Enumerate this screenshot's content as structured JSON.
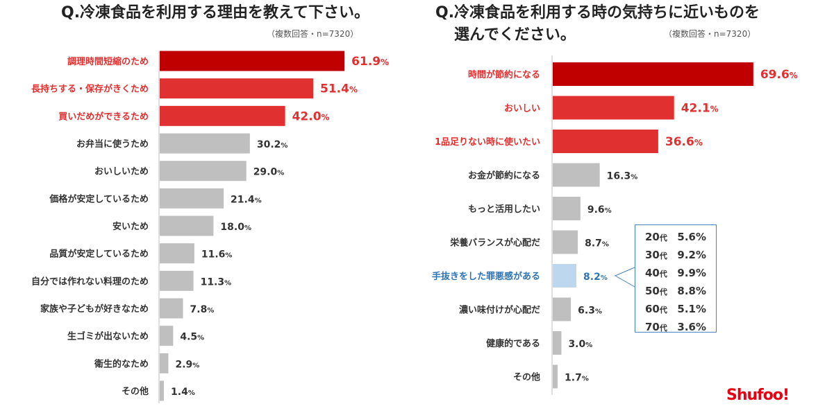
{
  "chart_data": [
    {
      "type": "bar",
      "orientation": "horizontal",
      "title": "Q.冷凍食品を利用する理由を教えて下さい。",
      "note": "（複数回答・n=7320）",
      "unit": "%",
      "xlim": [
        0,
        100
      ],
      "categories": [
        "調理時間短縮のため",
        "長持ちする・保存がきくため",
        "買いだめができるため",
        "お弁当に使うため",
        "おいしいため",
        "価格が安定しているため",
        "安いため",
        "品質が安定しているため",
        "自分では作れない料理のため",
        "家族や子どもが好きなため",
        "生ゴミが出ないため",
        "衛生的なため",
        "その他"
      ],
      "values": [
        61.9,
        51.4,
        42.0,
        30.2,
        29.0,
        21.4,
        18.0,
        11.6,
        11.3,
        7.8,
        4.5,
        2.9,
        1.4
      ],
      "labels": [
        "61.9",
        "51.4",
        "42.0",
        "30.2",
        "29.0",
        "21.4",
        "18.0",
        "11.6",
        "11.3",
        "7.8",
        "4.5",
        "2.9",
        "1.4"
      ],
      "highlight": [
        "top",
        "top",
        "top",
        "none",
        "none",
        "none",
        "none",
        "none",
        "none",
        "none",
        "none",
        "none",
        "none"
      ]
    },
    {
      "type": "bar",
      "orientation": "horizontal",
      "title_line1": "Q.冷凍食品を利用する時の気持ちに近いものを",
      "title_line2": "選んでください。",
      "note": "（複数回答・n=7320）",
      "unit": "%",
      "xlim": [
        0,
        100
      ],
      "categories": [
        "時間が節約になる",
        "おいしい",
        "1品足りない時に使いたい",
        "お金が節約になる",
        "もっと活用したい",
        "栄養バランスが心配だ",
        "手抜きをした罪悪感がある",
        "濃い味付けが心配だ",
        "健康的である",
        "その他"
      ],
      "values": [
        69.6,
        42.1,
        36.6,
        16.3,
        9.6,
        8.7,
        8.2,
        6.3,
        3.0,
        1.7
      ],
      "labels": [
        "69.6",
        "42.1",
        "36.6",
        "16.3",
        "9.6",
        "8.7",
        "8.2",
        "6.3",
        "3.0",
        "1.7"
      ],
      "highlight": [
        "top",
        "top",
        "top",
        "none",
        "none",
        "none",
        "blue",
        "none",
        "none",
        "none"
      ]
    }
  ],
  "callout": {
    "for_category": "手抜きをした罪悪感がある",
    "rows": [
      {
        "age": "20",
        "suffix": "代",
        "value": "5.6%"
      },
      {
        "age": "30",
        "suffix": "代",
        "value": "9.2%"
      },
      {
        "age": "40",
        "suffix": "代",
        "value": "9.9%"
      },
      {
        "age": "50",
        "suffix": "代",
        "value": "8.8%"
      },
      {
        "age": "60",
        "suffix": "代",
        "value": "5.1%"
      },
      {
        "age": "70",
        "suffix": "代",
        "value": "3.6%"
      }
    ]
  },
  "colors": {
    "first": "#c00000",
    "top": "#e03030",
    "normal": "#bfbfbf",
    "blue_bar": "#bdd7ee",
    "blue_text": "#2e75b6",
    "callout_border": "#4a82c0",
    "logo": "#e60012"
  },
  "logo": "Shufoo!"
}
